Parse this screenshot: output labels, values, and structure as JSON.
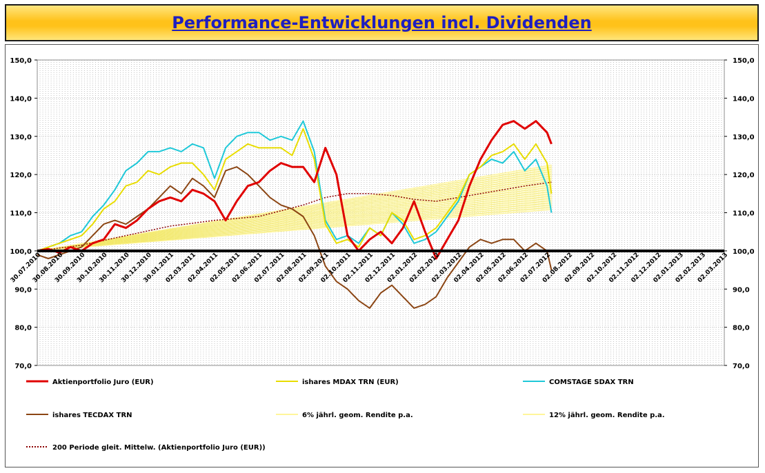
{
  "title": "Performance-Entwicklungen incl. Dividenden",
  "chart_data": {
    "type": "line",
    "title": "Performance-Entwicklungen incl. Dividenden",
    "ylim": [
      70,
      150
    ],
    "y_ticks": [
      "150,0",
      "140,0",
      "130,0",
      "120,0",
      "110,0",
      "100,0",
      "90,0",
      "80,0",
      "70,0"
    ],
    "y_tick_values": [
      150,
      140,
      130,
      120,
      110,
      100,
      90,
      80,
      70
    ],
    "reference_line": 100,
    "grid": true,
    "x_ticks": [
      "30.07.2010",
      "30.08.2010",
      "30.09.2010",
      "30.10.2010",
      "30.11.2010",
      "30.12.2010",
      "30.01.2011",
      "02.03.2011",
      "02.04.2011",
      "02.05.2011",
      "02.06.2011",
      "02.07.2011",
      "02.08.2011",
      "02.09.2011",
      "02.10.2011",
      "02.11.2011",
      "02.12.2011",
      "02.01.2012",
      "02.02.2012",
      "02.03.2012",
      "02.04.2012",
      "02.05.2012",
      "02.06.2012",
      "02.07.2012",
      "02.08.2012",
      "02.09.2012",
      "02.10.2012",
      "02.11.2012",
      "02.12.2012",
      "02.01.2013",
      "02.02.2013",
      "02.03.2013"
    ],
    "legend_placement": "bottom",
    "series": [
      {
        "name": "Aktienportfolio Juro (EUR)",
        "color": "#e00000",
        "style": "solid",
        "width": 3,
        "x": [
          0,
          0.5,
          1,
          1.5,
          2,
          2.5,
          3,
          3.5,
          4,
          4.5,
          5,
          5.5,
          6,
          6.5,
          7,
          7.5,
          8,
          8.5,
          9,
          9.5,
          10,
          10.5,
          11,
          11.5,
          12,
          12.5,
          13,
          13.5,
          14,
          14.5,
          15,
          15.5,
          16,
          16.5,
          17,
          17.5,
          18,
          18.5,
          19,
          19.5,
          20,
          20.5,
          21,
          21.5,
          22,
          22.5,
          23,
          23.2
        ],
        "y": [
          100,
          100.5,
          99.5,
          101,
          100,
          102,
          103,
          107,
          106,
          108,
          111,
          113,
          114,
          113,
          116,
          115,
          113,
          108,
          113,
          117,
          118,
          121,
          123,
          122,
          122,
          118,
          127,
          120,
          104,
          100,
          103,
          105,
          102,
          106,
          113,
          105,
          98,
          103,
          108,
          117,
          124,
          129,
          133,
          134,
          132,
          134,
          131,
          128
        ]
      },
      {
        "name": "ishares MDAX TRN (EUR)",
        "color": "#e8dc00",
        "style": "solid",
        "width": 2,
        "x": [
          0,
          0.5,
          1,
          1.5,
          2,
          2.5,
          3,
          3.5,
          4,
          4.5,
          5,
          5.5,
          6,
          6.5,
          7,
          7.5,
          8,
          8.5,
          9,
          9.5,
          10,
          10.5,
          11,
          11.5,
          12,
          12.5,
          13,
          13.5,
          14,
          14.5,
          15,
          15.5,
          16,
          16.5,
          17,
          17.5,
          18,
          18.5,
          19,
          19.5,
          20,
          20.5,
          21,
          21.5,
          22,
          22.5,
          23,
          23.2
        ],
        "y": [
          100,
          101,
          102,
          103,
          104,
          107,
          111,
          113,
          117,
          118,
          121,
          120,
          122,
          123,
          123,
          120,
          116,
          124,
          126,
          128,
          127,
          127,
          127,
          125,
          132,
          124,
          107,
          102,
          103,
          101,
          106,
          104,
          110,
          108,
          103,
          104,
          106,
          110,
          114,
          120,
          122,
          125,
          126,
          128,
          124,
          128,
          123,
          115
        ]
      },
      {
        "name": "COMSTAGE SDAX TRN",
        "color": "#1ec8d8",
        "style": "solid",
        "width": 2,
        "x": [
          0,
          0.5,
          1,
          1.5,
          2,
          2.5,
          3,
          3.5,
          4,
          4.5,
          5,
          5.5,
          6,
          6.5,
          7,
          7.5,
          8,
          8.5,
          9,
          9.5,
          10,
          10.5,
          11,
          11.5,
          12,
          12.5,
          13,
          13.5,
          14,
          14.5,
          15,
          15.5,
          16,
          16.5,
          17,
          17.5,
          18,
          18.5,
          19,
          19.5,
          20,
          20.5,
          21,
          21.5,
          22,
          22.5,
          23,
          23.2
        ],
        "y": [
          100,
          101,
          102,
          104,
          105,
          109,
          112,
          116,
          121,
          123,
          126,
          126,
          127,
          126,
          128,
          127,
          119,
          127,
          130,
          131,
          131,
          129,
          130,
          129,
          134,
          126,
          108,
          103,
          104,
          102,
          106,
          104,
          110,
          107,
          102,
          103,
          105,
          109,
          113,
          120,
          122,
          124,
          123,
          126,
          121,
          124,
          117,
          110
        ]
      },
      {
        "name": "ishares TECDAX TRN",
        "color": "#8b4513",
        "style": "solid",
        "width": 2,
        "x": [
          0,
          0.5,
          1,
          1.5,
          2,
          2.5,
          3,
          3.5,
          4,
          4.5,
          5,
          5.5,
          6,
          6.5,
          7,
          7.5,
          8,
          8.5,
          9,
          9.5,
          10,
          10.5,
          11,
          11.5,
          12,
          12.5,
          13,
          13.5,
          14,
          14.5,
          15,
          15.5,
          16,
          16.5,
          17,
          17.5,
          18,
          18.5,
          19,
          19.5,
          20,
          20.5,
          21,
          21.5,
          22,
          22.5,
          23,
          23.2
        ],
        "y": [
          99,
          98,
          99,
          100,
          101,
          104,
          107,
          108,
          107,
          109,
          111,
          114,
          117,
          115,
          119,
          117,
          114,
          121,
          122,
          120,
          117,
          114,
          112,
          111,
          109,
          104,
          96,
          92,
          90,
          87,
          85,
          89,
          91,
          88,
          85,
          86,
          88,
          93,
          97,
          101,
          103,
          102,
          103,
          103,
          100,
          102,
          100,
          95
        ]
      },
      {
        "name": "6% jährl. geom. Rendite p.a.",
        "color": "#fff59a",
        "style": "solid",
        "width": 1,
        "x": [
          0,
          23.2
        ],
        "y": [
          100,
          110.8
        ]
      },
      {
        "name": "12% jährl. geom. Rendite p.a.",
        "color": "#fff59a",
        "style": "solid",
        "width": 1,
        "x": [
          0,
          23.2
        ],
        "y": [
          100,
          122.5
        ]
      },
      {
        "name": "200 Periode gleit. Mittelw. (Aktienportfolio Juro (EUR))",
        "color": "#8b0000",
        "style": "dotted",
        "width": 1.5,
        "x": [
          0,
          2,
          4,
          6,
          8,
          10,
          11,
          12,
          13,
          14,
          15,
          16,
          17,
          18,
          19,
          20,
          21,
          22,
          23.2
        ],
        "y": [
          100,
          101.5,
          104,
          106.5,
          108,
          109,
          110.5,
          112,
          114,
          115,
          115,
          114.5,
          113.5,
          113,
          114,
          115,
          116,
          117,
          118
        ]
      }
    ]
  }
}
